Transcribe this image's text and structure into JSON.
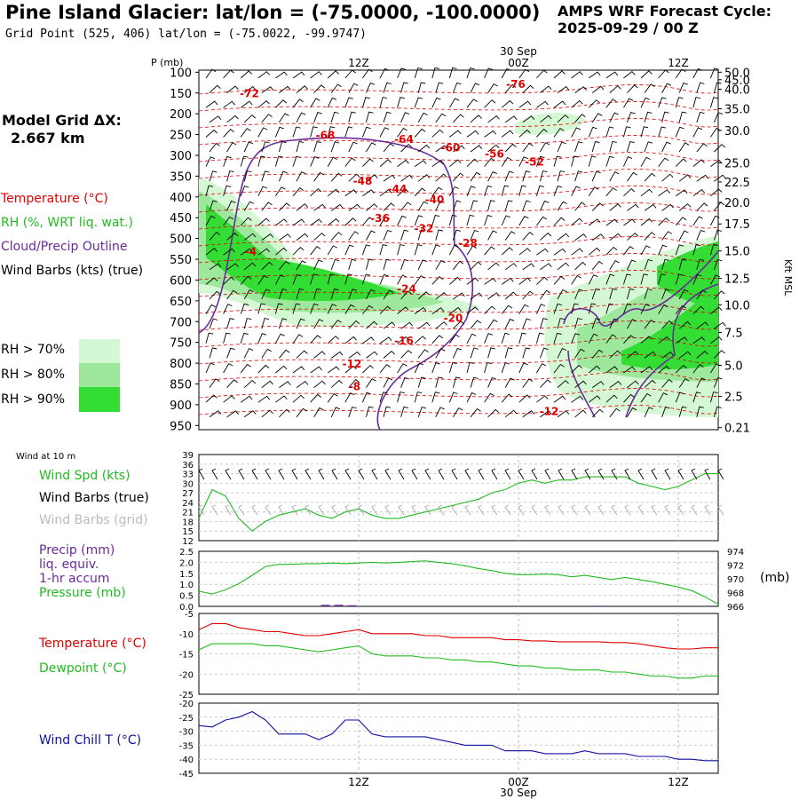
{
  "header": {
    "title": "Pine Island Glacier:  lat/lon = (-75.0000, -100.0000)",
    "subtitle": "Grid Point (525, 406) lat/lon = (-75.0022, -99.9747)",
    "cycle_label": "AMPS WRF Forecast Cycle:",
    "cycle_value": "2025-09-29 / 00  Z"
  },
  "model_grid": {
    "label": "Model Grid ΔX:",
    "value": "2.667 km"
  },
  "colors": {
    "temperature": "#e00000",
    "rh": "#22bb22",
    "cloud": "#6a2a9a",
    "wind": "#000000",
    "wind_grid": "#aaaaaa",
    "windchill": "#1010a0",
    "rh70": "#d4f8d4",
    "rh80": "#9ee89e",
    "rh90": "#33dd33"
  },
  "time_axis": {
    "date_label": "30 Sep",
    "ticks": [
      "12Z",
      "00Z",
      "12Z"
    ],
    "tick_hours": [
      12,
      24,
      36
    ]
  },
  "chart_data": [
    {
      "type": "heatmap",
      "name": "cross-section",
      "legend": {
        "temperature": "Temperature (°C)",
        "rh": "RH (%, WRT liq. wat.)",
        "cloud": "Cloud/Precip Outline",
        "wind": "Wind Barbs (kts) (true)"
      },
      "rh_levels": [
        "RH > 70%",
        "RH > 80%",
        "RH > 90%"
      ],
      "ylabel_left": "P (mb)",
      "ylabel_right": "Kft MSL",
      "pressure_ticks": [
        100,
        150,
        200,
        250,
        300,
        350,
        400,
        450,
        500,
        550,
        600,
        650,
        700,
        750,
        800,
        850,
        900,
        950
      ],
      "height_ticks": [
        {
          "label": "50.0",
          "p": 100
        },
        {
          "label": "45.0",
          "p": 118
        },
        {
          "label": "40.0",
          "p": 141
        },
        {
          "label": "35.0",
          "p": 188
        },
        {
          "label": "30.0",
          "p": 240
        },
        {
          "label": "25.0",
          "p": 318
        },
        {
          "label": "22.5",
          "p": 364
        },
        {
          "label": "20.0",
          "p": 413
        },
        {
          "label": "17.5",
          "p": 465
        },
        {
          "label": "15.0",
          "p": 530
        },
        {
          "label": "12.5",
          "p": 596
        },
        {
          "label": "10.0",
          "p": 660
        },
        {
          "label": "7.5",
          "p": 726
        },
        {
          "label": "5.0",
          "p": 805
        },
        {
          "label": "2.5",
          "p": 880
        },
        {
          "label": "0.21",
          "p": 955
        }
      ],
      "temperature_labels": [
        {
          "value": "-72",
          "hour": 3.8,
          "p": 160
        },
        {
          "value": "-76",
          "hour": 23.8,
          "p": 138
        },
        {
          "value": "-68",
          "hour": 9.5,
          "p": 260
        },
        {
          "value": "-64",
          "hour": 15.4,
          "p": 270
        },
        {
          "value": "-60",
          "hour": 18.9,
          "p": 290
        },
        {
          "value": "-56",
          "hour": 22.2,
          "p": 305
        },
        {
          "value": "-52",
          "hour": 25.2,
          "p": 325
        },
        {
          "value": "-48",
          "hour": 12.3,
          "p": 370
        },
        {
          "value": "-44",
          "hour": 14.9,
          "p": 390
        },
        {
          "value": "-40",
          "hour": 17.7,
          "p": 415
        },
        {
          "value": "-36",
          "hour": 13.6,
          "p": 460
        },
        {
          "value": "-32",
          "hour": 16.9,
          "p": 485
        },
        {
          "value": "-28",
          "hour": 20.2,
          "p": 520
        },
        {
          "value": "-24",
          "hour": 15.6,
          "p": 630
        },
        {
          "value": "-20",
          "hour": 19.1,
          "p": 700
        },
        {
          "value": "-16",
          "hour": 15.4,
          "p": 755
        },
        {
          "value": "-12",
          "hour": 11.5,
          "p": 810
        },
        {
          "value": "-8",
          "hour": 11.7,
          "p": 865
        },
        {
          "value": "-12",
          "hour": 26.3,
          "p": 925
        },
        {
          "value": "-4",
          "hour": 3.9,
          "p": 540
        }
      ]
    },
    {
      "type": "line",
      "name": "wind-panel",
      "header": "Wind at 10 m",
      "labels": [
        "Wind Spd (kts)",
        "Wind Barbs (true)",
        "Wind Barbs (grid)"
      ],
      "yticks": [
        12,
        15,
        18,
        21,
        24,
        27,
        30,
        33,
        36,
        39
      ],
      "ylim": [
        12,
        39
      ],
      "series": [
        {
          "x": [
            0,
            1,
            2,
            3,
            4,
            5,
            6,
            7,
            8,
            9,
            10,
            11,
            12,
            13,
            14,
            15,
            16,
            17,
            18,
            19,
            20,
            21,
            22,
            23,
            24,
            25,
            26,
            27,
            28,
            29,
            30,
            31,
            32,
            33,
            34,
            35,
            36,
            37,
            38,
            39
          ],
          "y": [
            19,
            28,
            26,
            19,
            15,
            18,
            20,
            21,
            22,
            20,
            19,
            21,
            22,
            20,
            19,
            19,
            20,
            21,
            22,
            23,
            24,
            25,
            27,
            28,
            30,
            31,
            30,
            31,
            31,
            32,
            32,
            32,
            32,
            30,
            29,
            28,
            29,
            31,
            33,
            33
          ]
        }
      ]
    },
    {
      "type": "line",
      "name": "precip-pressure-panel",
      "labels": [
        "Precip (mm)",
        "liq. equiv.",
        "1-hr accum",
        "Pressure (mb)"
      ],
      "right_label": "(mb)",
      "yticks_left": [
        "0.0",
        "0.5",
        "1.0",
        "1.5",
        "2.0",
        "2.5"
      ],
      "yticks_right": [
        "966",
        "968",
        "970",
        "972",
        "974"
      ],
      "ylim_left": [
        0,
        2.5
      ],
      "ylim_right": [
        966,
        974
      ],
      "precip": [
        {
          "hour": 9.5,
          "value": 0.07
        },
        {
          "hour": 10.5,
          "value": 0.07
        },
        {
          "hour": 11.5,
          "value": 0.05
        },
        {
          "hour": 30.0,
          "value": 0.03
        }
      ],
      "pressure": {
        "x": [
          0,
          1,
          2,
          3,
          4,
          5,
          6,
          7,
          8,
          9,
          10,
          11,
          12,
          13,
          14,
          15,
          16,
          17,
          18,
          19,
          20,
          21,
          22,
          23,
          24,
          25,
          26,
          27,
          28,
          29,
          30,
          31,
          32,
          33,
          34,
          35,
          36,
          37,
          38,
          39
        ],
        "y": [
          968.2,
          967.8,
          968.4,
          969.3,
          970.5,
          971.8,
          972.1,
          972.1,
          972.2,
          972.2,
          972.3,
          972.2,
          972.3,
          972.4,
          972.3,
          972.4,
          972.5,
          972.6,
          972.4,
          972.2,
          971.9,
          971.5,
          971.2,
          970.8,
          970.6,
          970.6,
          970.7,
          970.6,
          970.3,
          970.5,
          970.2,
          969.9,
          970.2,
          969.9,
          969.6,
          969.2,
          968.8,
          968.3,
          967.4,
          966.3
        ]
      }
    },
    {
      "type": "line",
      "name": "temperature-panel",
      "labels": [
        "Temperature (°C)",
        "Dewpoint (°C)"
      ],
      "yticks": [
        -25,
        -20,
        -15,
        -10,
        -5
      ],
      "ylim": [
        -25,
        -5
      ],
      "series": [
        {
          "name": "Temperature (°C)",
          "x": [
            0,
            1,
            2,
            3,
            4,
            5,
            6,
            7,
            8,
            9,
            10,
            11,
            12,
            13,
            14,
            15,
            16,
            17,
            18,
            19,
            20,
            21,
            22,
            23,
            24,
            25,
            26,
            27,
            28,
            29,
            30,
            31,
            32,
            33,
            34,
            35,
            36,
            37,
            38,
            39
          ],
          "y": [
            -9,
            -7.5,
            -7.5,
            -8.5,
            -9,
            -9.5,
            -9.5,
            -10,
            -10.5,
            -10.5,
            -10,
            -9.5,
            -9,
            -10,
            -10,
            -10,
            -10,
            -10.5,
            -10.5,
            -11,
            -11,
            -11,
            -11,
            -11.5,
            -11.5,
            -11.8,
            -11.8,
            -12,
            -12,
            -12,
            -12,
            -12.2,
            -12.2,
            -12.5,
            -13,
            -13.5,
            -13.8,
            -13.8,
            -13.5,
            -13.5
          ]
        },
        {
          "name": "Dewpoint (°C)",
          "x": [
            0,
            1,
            2,
            3,
            4,
            5,
            6,
            7,
            8,
            9,
            10,
            11,
            12,
            13,
            14,
            15,
            16,
            17,
            18,
            19,
            20,
            21,
            22,
            23,
            24,
            25,
            26,
            27,
            28,
            29,
            30,
            31,
            32,
            33,
            34,
            35,
            36,
            37,
            38,
            39
          ],
          "y": [
            -14,
            -12.5,
            -12.5,
            -12.5,
            -12.5,
            -13,
            -13,
            -13.5,
            -14,
            -14.5,
            -14,
            -13.5,
            -13,
            -15,
            -15.5,
            -15.5,
            -15.5,
            -16,
            -16,
            -16.5,
            -16.5,
            -17,
            -17,
            -17.5,
            -18,
            -18,
            -18.5,
            -18.5,
            -19,
            -19,
            -19,
            -19.5,
            -19.5,
            -20,
            -20.5,
            -20.5,
            -21,
            -21,
            -20.5,
            -20.5
          ]
        }
      ]
    },
    {
      "type": "line",
      "name": "windchill-panel",
      "labels": [
        "Wind Chill T (°C)"
      ],
      "yticks": [
        -45,
        -40,
        -35,
        -30,
        -25,
        -20
      ],
      "ylim": [
        -45,
        -20
      ],
      "series": [
        {
          "name": "Wind Chill T (°C)",
          "x": [
            0,
            1,
            2,
            3,
            4,
            5,
            6,
            7,
            8,
            9,
            10,
            11,
            12,
            13,
            14,
            15,
            16,
            17,
            18,
            19,
            20,
            21,
            22,
            23,
            24,
            25,
            26,
            27,
            28,
            29,
            30,
            31,
            32,
            33,
            34,
            35,
            36,
            37,
            38,
            39
          ],
          "y": [
            -28,
            -28.5,
            -26,
            -25,
            -23,
            -26,
            -31,
            -31,
            -31,
            -33,
            -31,
            -26,
            -26,
            -31,
            -32,
            -32,
            -32,
            -32,
            -33,
            -34,
            -35,
            -35,
            -35,
            -37,
            -37,
            -37,
            -38,
            -38,
            -38,
            -37,
            -38,
            -38,
            -38,
            -39,
            -39,
            -39,
            -40,
            -40,
            -40.5,
            -40.5
          ]
        }
      ]
    }
  ]
}
